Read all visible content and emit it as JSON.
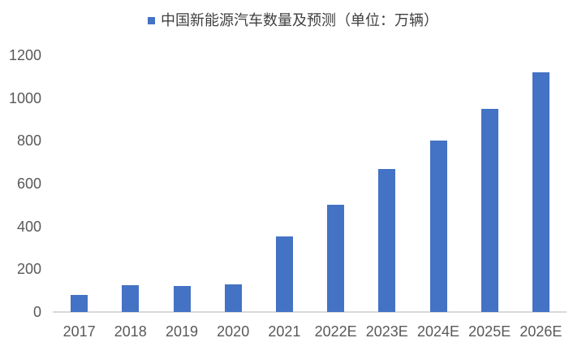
{
  "legend": {
    "label": "中国新能源汽车数量及预测（单位：万辆）"
  },
  "chart_data": {
    "type": "bar",
    "title": "",
    "xlabel": "",
    "ylabel": "",
    "series_name": "中国新能源汽车数量及预测（单位：万辆）",
    "categories": [
      "2017",
      "2018",
      "2019",
      "2020",
      "2021",
      "2022E",
      "2023E",
      "2024E",
      "2025E",
      "2026E"
    ],
    "values": [
      78,
      125,
      120,
      130,
      352,
      500,
      670,
      800,
      950,
      1120
    ],
    "ylim": [
      0,
      1200
    ],
    "yticks": [
      0,
      200,
      400,
      600,
      800,
      1000,
      1200
    ],
    "grid": false,
    "legend_position": "top-center",
    "bar_color": "#4472C4",
    "axis_line_color": "#D9D9D9",
    "tick_label_color": "#595959",
    "legend_text_color": "#404040",
    "background_color": "#FFFFFF"
  }
}
